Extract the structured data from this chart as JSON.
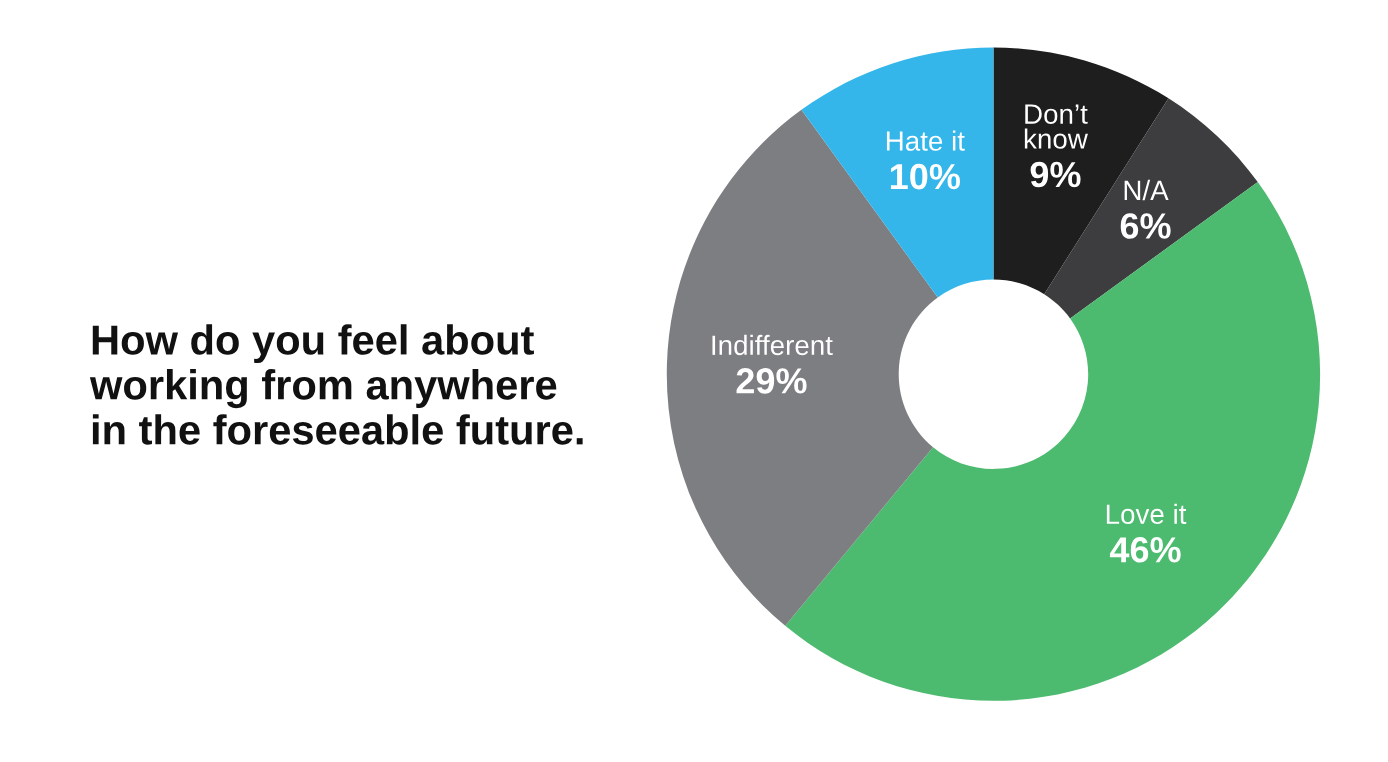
{
  "chart_data": {
    "type": "donut",
    "title": "How do you feel about\nworking from anywhere\nin the foreseeable future.",
    "categories": [
      "Don’t\nknow",
      "N/A",
      "Love it",
      "Indifferent",
      "Hate it"
    ],
    "values": [
      9,
      6,
      46,
      29,
      10
    ],
    "value_labels": [
      "9%",
      "6%",
      "46%",
      "29%",
      "10%"
    ],
    "colors": [
      "#1e1e1e",
      "#3d3d3f",
      "#4cbb6f",
      "#7d7e82",
      "#35b6ea"
    ],
    "legend": false
  }
}
